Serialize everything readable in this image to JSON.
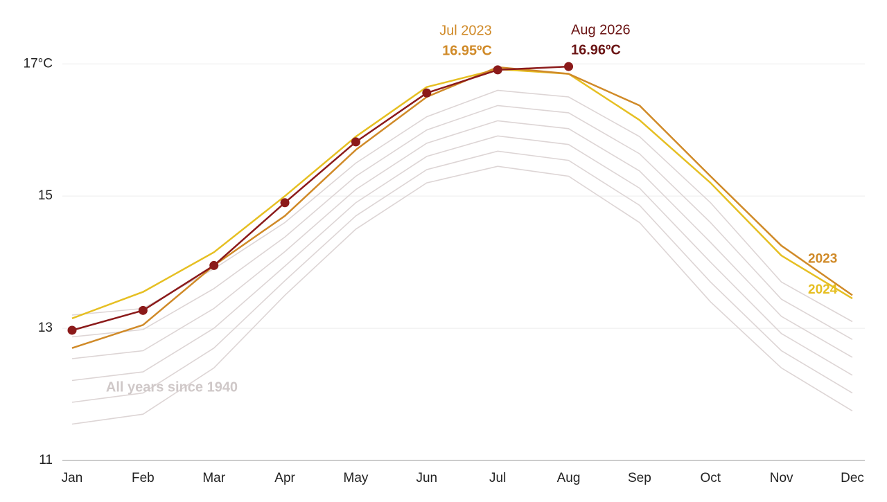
{
  "chart_data": {
    "type": "line",
    "categories": [
      "Jan",
      "Feb",
      "Mar",
      "Apr",
      "May",
      "Jun",
      "Jul",
      "Aug",
      "Sep",
      "Oct",
      "Nov",
      "Dec"
    ],
    "ylim": [
      11,
      17.6
    ],
    "yticks": [
      11,
      13,
      15,
      {
        "value": 17,
        "label": "17°C"
      }
    ],
    "grid": true,
    "background_label": "All years since 1940",
    "background_color": "#ddd5d5",
    "background_series": [
      [
        11.55,
        11.7,
        12.4,
        13.5,
        14.5,
        15.2,
        15.45,
        15.3,
        14.6,
        13.4,
        12.4,
        11.75
      ],
      [
        11.88,
        12.02,
        12.7,
        13.72,
        14.7,
        15.4,
        15.68,
        15.54,
        14.86,
        13.7,
        12.66,
        12.02
      ],
      [
        12.21,
        12.34,
        13.0,
        13.94,
        14.9,
        15.6,
        15.91,
        15.78,
        15.12,
        14.0,
        12.92,
        12.29
      ],
      [
        12.54,
        12.66,
        13.3,
        14.16,
        15.1,
        15.8,
        16.14,
        16.02,
        15.38,
        14.3,
        13.18,
        12.56
      ],
      [
        12.87,
        12.98,
        13.6,
        14.38,
        15.3,
        16.0,
        16.37,
        16.26,
        15.64,
        14.6,
        13.44,
        12.83
      ],
      [
        13.2,
        13.3,
        13.9,
        14.6,
        15.5,
        16.2,
        16.6,
        16.5,
        15.9,
        14.9,
        13.7,
        13.1
      ]
    ],
    "series": [
      {
        "name": "2024",
        "color": "#e6bf22",
        "values": [
          13.15,
          13.55,
          14.15,
          15.0,
          15.9,
          16.65,
          16.92,
          16.85,
          16.15,
          15.2,
          14.1,
          13.45
        ]
      },
      {
        "name": "2023",
        "color": "#d08a28",
        "values": [
          12.7,
          13.05,
          13.95,
          14.7,
          15.7,
          16.5,
          16.95,
          16.85,
          16.37,
          15.3,
          14.25,
          13.5
        ]
      },
      {
        "color": "#8b1a1a",
        "markers": true,
        "values": [
          12.97,
          13.27,
          13.95,
          14.9,
          15.82,
          16.56,
          16.91,
          16.96,
          null,
          null,
          null,
          null
        ]
      }
    ],
    "annotations": [
      {
        "title": "Jul 2023",
        "value_label": "16.95ºC"
      },
      {
        "title": "Aug 2026",
        "value_label": "16.96ºC"
      }
    ]
  }
}
